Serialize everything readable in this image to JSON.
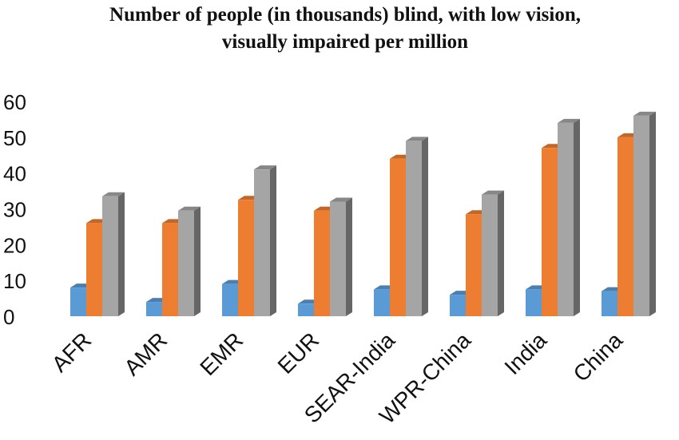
{
  "chart_data": {
    "type": "bar",
    "title_lines": [
      "Number of people (in thousands) blind, with low vision,",
      "visually impaired per million"
    ],
    "categories": [
      "AFR",
      "AMR",
      "EMR",
      "EUR",
      "SEAR-India",
      "WPR-China",
      "India",
      "China"
    ],
    "series": [
      {
        "values": [
          8,
          4,
          9,
          3.5,
          7.5,
          6,
          7.5,
          7
        ],
        "color": "#5B9BD5"
      },
      {
        "values": [
          26,
          26,
          32.5,
          29.5,
          44,
          28.5,
          47,
          50
        ],
        "color": "#ED7D31"
      },
      {
        "values": [
          33.5,
          29.5,
          41,
          32,
          49,
          34,
          54,
          56
        ],
        "color": "#A5A5A5"
      }
    ],
    "yticks": [
      "0",
      "10",
      "20",
      "30",
      "40",
      "50",
      "60"
    ],
    "ylim": [
      0,
      60
    ],
    "grid": false,
    "legend": "none",
    "style": "3d-clustered-bar"
  }
}
